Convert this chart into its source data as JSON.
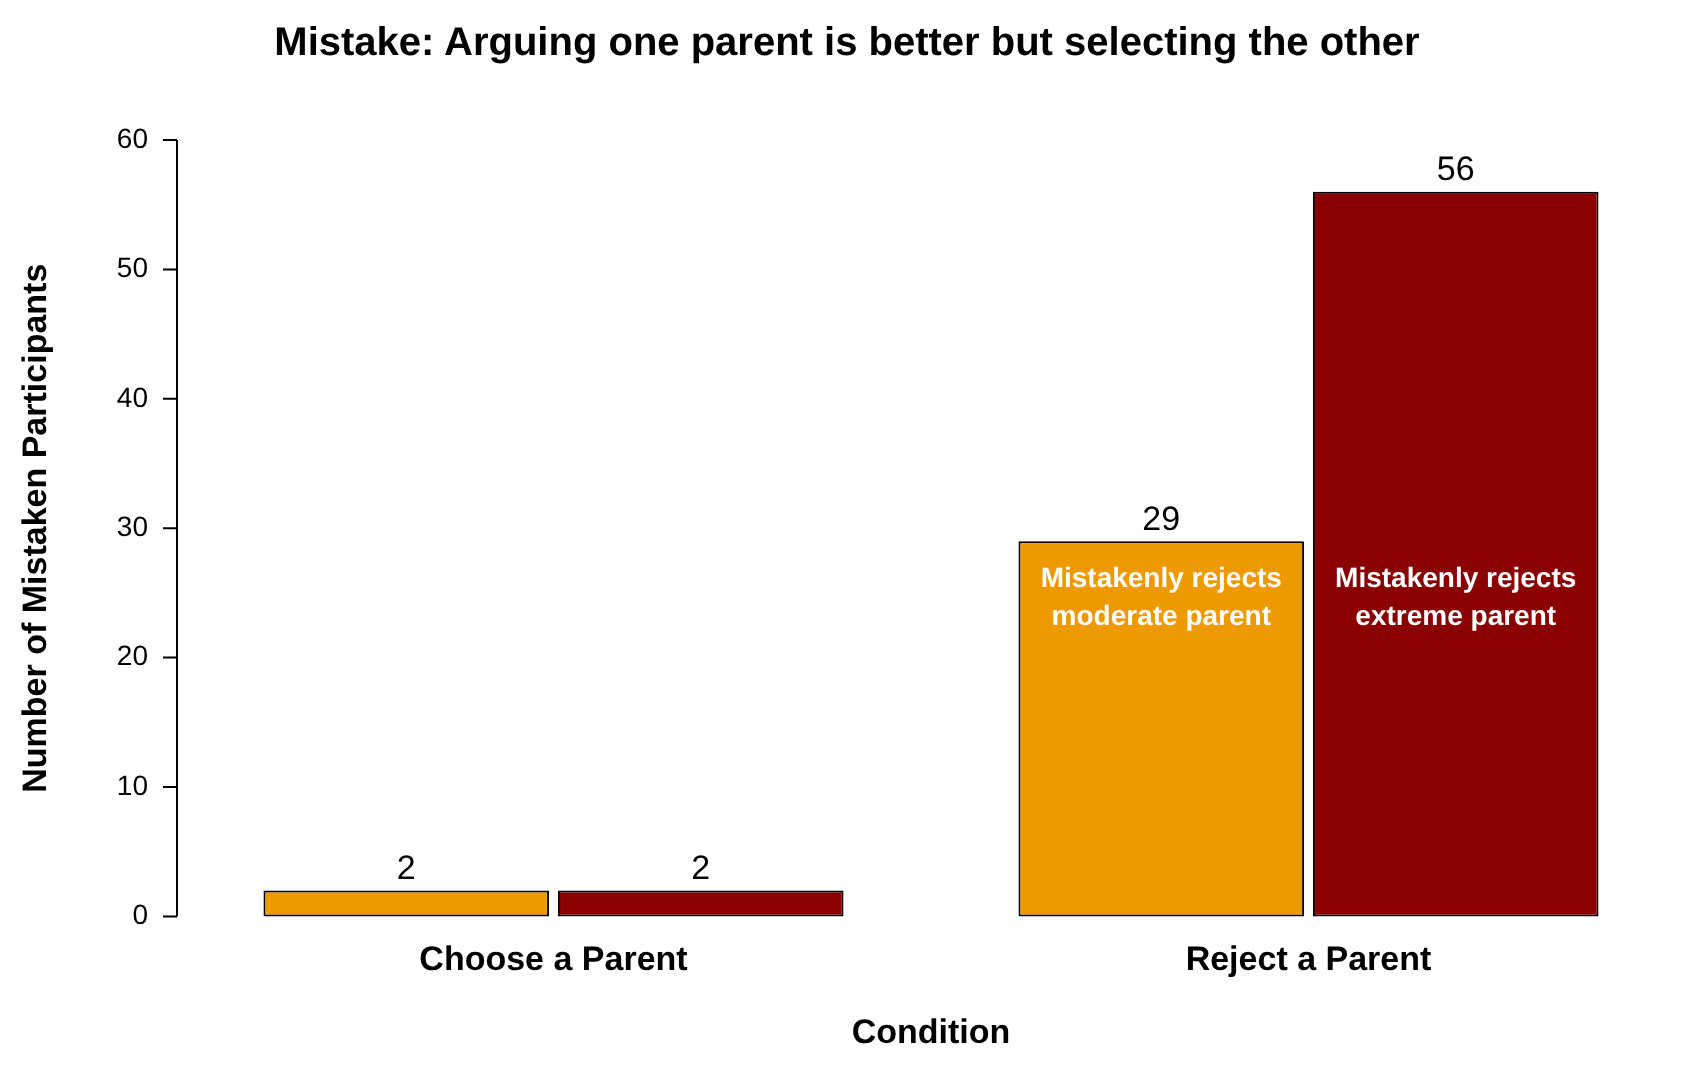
{
  "chart_data": {
    "type": "bar",
    "title": "Mistake: Arguing one parent is better but selecting the other",
    "xlabel": "Condition",
    "ylabel": "Number of Mistaken Participants",
    "categories": [
      "Choose a Parent",
      "Reject a Parent"
    ],
    "series": [
      {
        "name": "Mistakenly rejects moderate parent",
        "color": "#ee9900",
        "values": [
          2,
          29
        ]
      },
      {
        "name": "Mistakenly rejects extreme parent",
        "color": "#8b0000",
        "values": [
          2,
          56
        ]
      }
    ],
    "ylim": [
      0,
      60
    ],
    "yticks": [
      0,
      10,
      20,
      30,
      40,
      50,
      60
    ],
    "data_labels": true,
    "grid": false,
    "legend": false
  }
}
